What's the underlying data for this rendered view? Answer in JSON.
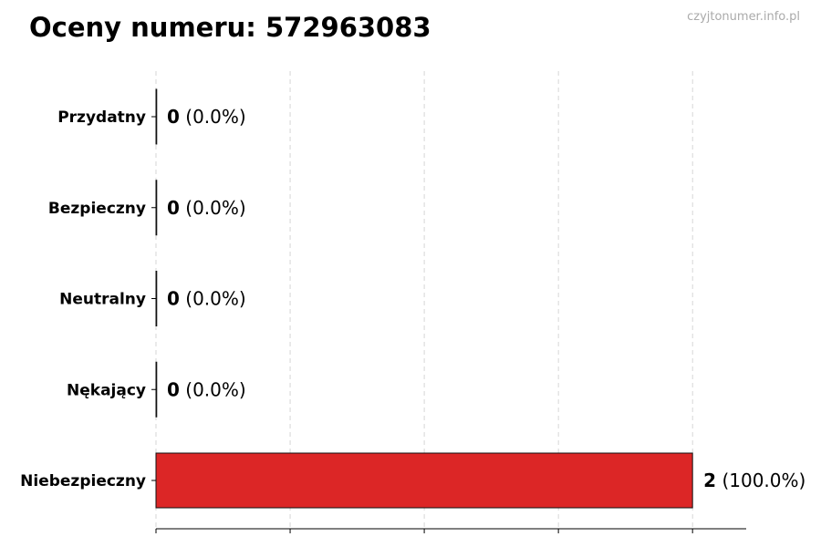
{
  "chart_data": {
    "type": "bar",
    "orientation": "horizontal",
    "title": "Oceny numeru: 572963083",
    "watermark": "czyjtonumer.info.pl",
    "categories": [
      "Przydatny",
      "Bezpieczny",
      "Neutralny",
      "Nękający",
      "Niebezpieczny"
    ],
    "values": [
      0,
      0,
      0,
      0,
      2
    ],
    "data_labels": [
      {
        "count": "0",
        "percent": "(0.0%)"
      },
      {
        "count": "0",
        "percent": "(0.0%)"
      },
      {
        "count": "0",
        "percent": "(0.0%)"
      },
      {
        "count": "0",
        "percent": "(0.0%)"
      },
      {
        "count": "2",
        "percent": "(100.0%)"
      }
    ],
    "xlim": [
      0,
      2.2
    ],
    "xticks": [
      0,
      0.5,
      1,
      1.5,
      2
    ],
    "xtick_labels_shown": false,
    "grid": "vertical dashed",
    "bar_color": "#dc2626",
    "xlabel": "",
    "ylabel": ""
  }
}
